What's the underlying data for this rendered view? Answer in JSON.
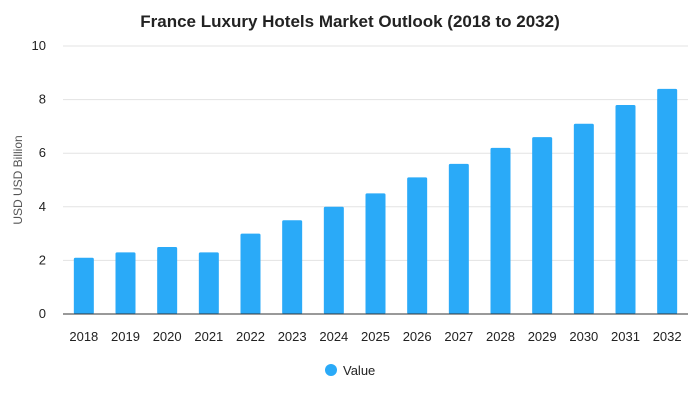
{
  "chart_data": {
    "type": "bar",
    "title": "France Luxury Hotels Market Outlook (2018 to 2032)",
    "xlabel": "",
    "ylabel": "USD USD Billion",
    "categories": [
      "2018",
      "2019",
      "2020",
      "2021",
      "2022",
      "2023",
      "2024",
      "2025",
      "2026",
      "2027",
      "2028",
      "2029",
      "2030",
      "2031",
      "2032"
    ],
    "series": [
      {
        "name": "Value",
        "values": [
          2.1,
          2.3,
          2.5,
          2.3,
          3.0,
          3.5,
          4.0,
          4.5,
          5.1,
          5.6,
          6.2,
          6.6,
          7.1,
          7.8,
          8.4
        ]
      }
    ],
    "ylim": [
      0,
      10
    ],
    "yticks": [
      0,
      2,
      4,
      6,
      8,
      10
    ],
    "grid": true,
    "legend": "bottom-center",
    "colors": {
      "bar": "#2aaaf8"
    }
  }
}
